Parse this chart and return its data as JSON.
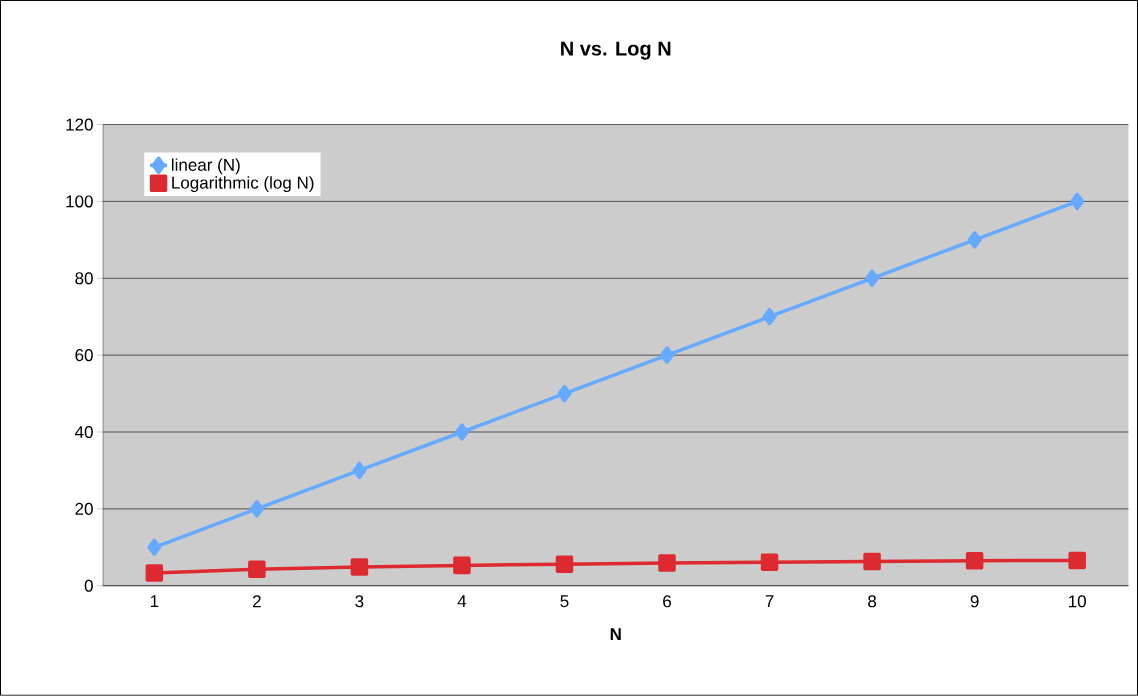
{
  "chart_data": {
    "type": "line",
    "title": "N vs. Log N",
    "xlabel": "N",
    "categories": [
      "1",
      "2",
      "3",
      "4",
      "5",
      "6",
      "7",
      "8",
      "9",
      "10"
    ],
    "series": [
      {
        "name": "linear (N)",
        "color": "#66aaff",
        "marker": "diamond",
        "values": [
          10,
          20,
          30,
          40,
          50,
          60,
          70,
          80,
          90,
          100
        ]
      },
      {
        "name": "Logarithmic (log N)",
        "color": "#dd2a30",
        "marker": "square",
        "values": [
          3.3,
          4.3,
          4.9,
          5.3,
          5.6,
          5.9,
          6.1,
          6.3,
          6.5,
          6.6
        ]
      }
    ],
    "ylim": [
      0,
      120
    ],
    "yticks": [
      0,
      20,
      40,
      60,
      80,
      100,
      120
    ],
    "grid": "y",
    "legend": "top left"
  }
}
